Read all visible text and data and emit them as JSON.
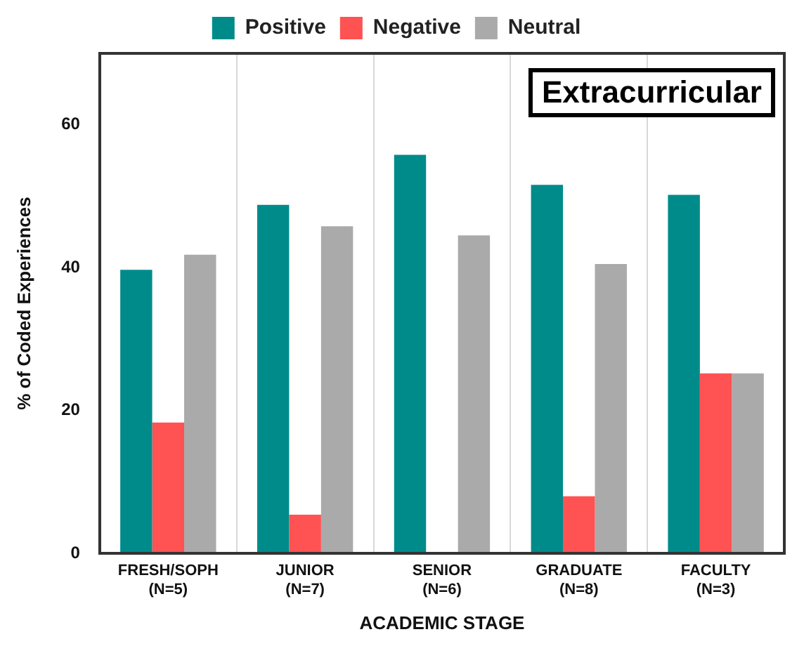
{
  "chart_data": {
    "type": "bar",
    "title": "Extracurricular",
    "xlabel": "ACADEMIC STAGE",
    "ylabel": "% of Coded Experiences",
    "categories": [
      "FRESH/SOPH\n(N=5)",
      "JUNIOR\n(N=7)",
      "SENIOR\n(N=6)",
      "GRADUATE\n(N=8)",
      "FACULTY\n(N=3)"
    ],
    "series": [
      {
        "name": "Positive",
        "color": "#008b8b",
        "values": [
          39.7,
          48.8,
          55.8,
          51.6,
          50.2
        ]
      },
      {
        "name": "Negative",
        "color": "#ff5252",
        "values": [
          18.3,
          5.4,
          0,
          8.0,
          25.2
        ]
      },
      {
        "name": "Neutral",
        "color": "#aaaaaa",
        "values": [
          41.8,
          45.8,
          44.5,
          40.5,
          25.2
        ]
      }
    ],
    "ylim": [
      0,
      70
    ],
    "yticks": [
      0,
      20,
      40,
      60
    ],
    "grid": "x",
    "legend": "top"
  }
}
